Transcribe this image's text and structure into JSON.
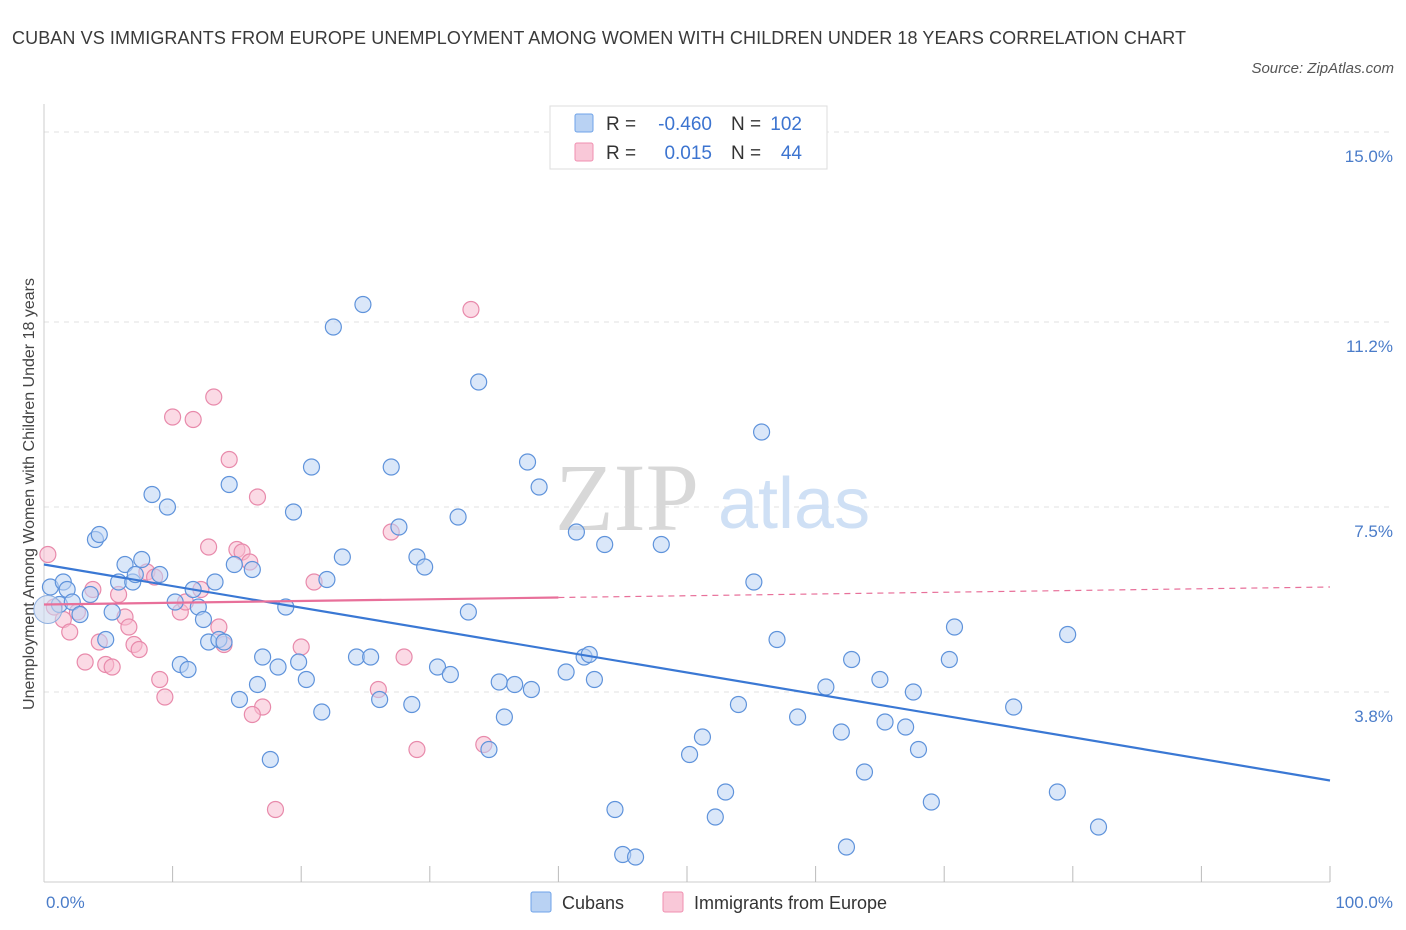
{
  "title": "CUBAN VS IMMIGRANTS FROM EUROPE UNEMPLOYMENT AMONG WOMEN WITH CHILDREN UNDER 18 YEARS CORRELATION CHART",
  "source": "Source: ZipAtlas.com",
  "watermark": {
    "zip": "ZIP",
    "atlas": "atlas"
  },
  "colors": {
    "cubans": "#6fa3e8",
    "europe": "#f08fb0",
    "cubans_line": "#3a78d4",
    "europe_line": "#e8709a",
    "tick_label": "#4a7cc9"
  },
  "legend": {
    "rows": [
      {
        "r_label": "R =",
        "r_value": "-0.460",
        "n_label": "N =",
        "n_value": "102",
        "series": "cubans"
      },
      {
        "r_label": "R =",
        "r_value": "0.015",
        "n_label": "N =",
        "n_value": "44",
        "series": "europe"
      }
    ]
  },
  "chart_data": {
    "type": "scatter",
    "title": "CUBAN VS IMMIGRANTS FROM EUROPE UNEMPLOYMENT AMONG WOMEN WITH CHILDREN UNDER 18 YEARS CORRELATION CHART",
    "ylabel": "Unemployment Among Women with Children Under 18 years",
    "xlabel": "",
    "x_range": [
      0,
      100
    ],
    "y_range": [
      0,
      15
    ],
    "x_tick_labels": [
      "0.0%",
      "100.0%"
    ],
    "y_ticks": [
      {
        "value": 3.8,
        "label": "3.8%"
      },
      {
        "value": 7.5,
        "label": "7.5%"
      },
      {
        "value": 11.2,
        "label": "11.2%"
      },
      {
        "value": 15.0,
        "label": "15.0%"
      }
    ],
    "grid": "horizontal dashed",
    "legend_position": "top-center",
    "series": [
      {
        "name": "Cubans",
        "color": "#6fa3e8",
        "trend": {
          "x": [
            0,
            100
          ],
          "y": [
            6.35,
            2.03
          ],
          "style": "solid"
        },
        "points": [
          [
            0.5,
            5.9
          ],
          [
            1.2,
            5.55
          ],
          [
            1.5,
            6.0
          ],
          [
            1.8,
            5.85
          ],
          [
            2.2,
            5.6
          ],
          [
            2.8,
            5.35
          ],
          [
            3.6,
            5.75
          ],
          [
            4.0,
            6.85
          ],
          [
            4.3,
            6.95
          ],
          [
            4.8,
            4.85
          ],
          [
            5.3,
            5.4
          ],
          [
            5.8,
            6.0
          ],
          [
            6.3,
            6.35
          ],
          [
            6.9,
            6.0
          ],
          [
            7.1,
            6.15
          ],
          [
            7.6,
            6.45
          ],
          [
            8.4,
            7.75
          ],
          [
            9.0,
            6.15
          ],
          [
            9.6,
            7.5
          ],
          [
            10.2,
            5.6
          ],
          [
            10.6,
            4.35
          ],
          [
            11.2,
            4.25
          ],
          [
            11.6,
            5.85
          ],
          [
            12.0,
            5.5
          ],
          [
            12.4,
            5.25
          ],
          [
            12.8,
            4.8
          ],
          [
            13.3,
            6.0
          ],
          [
            13.6,
            4.85
          ],
          [
            14.0,
            4.8
          ],
          [
            14.4,
            7.95
          ],
          [
            14.8,
            6.35
          ],
          [
            15.2,
            3.65
          ],
          [
            16.2,
            6.25
          ],
          [
            16.6,
            3.95
          ],
          [
            17.0,
            4.5
          ],
          [
            17.6,
            2.45
          ],
          [
            18.2,
            4.3
          ],
          [
            18.8,
            5.5
          ],
          [
            19.4,
            7.4
          ],
          [
            19.8,
            4.4
          ],
          [
            20.4,
            4.05
          ],
          [
            20.8,
            8.3
          ],
          [
            21.6,
            3.4
          ],
          [
            22.0,
            6.05
          ],
          [
            22.5,
            11.1
          ],
          [
            23.2,
            6.5
          ],
          [
            24.3,
            4.5
          ],
          [
            24.8,
            11.55
          ],
          [
            25.4,
            4.5
          ],
          [
            26.1,
            3.65
          ],
          [
            27.0,
            8.3
          ],
          [
            27.6,
            7.1
          ],
          [
            28.6,
            3.55
          ],
          [
            29.0,
            6.5
          ],
          [
            29.6,
            6.3
          ],
          [
            30.6,
            4.3
          ],
          [
            31.6,
            4.15
          ],
          [
            32.2,
            7.3
          ],
          [
            33.0,
            5.4
          ],
          [
            33.8,
            10.0
          ],
          [
            34.6,
            2.65
          ],
          [
            35.4,
            4.0
          ],
          [
            35.8,
            3.3
          ],
          [
            36.6,
            3.95
          ],
          [
            37.6,
            8.4
          ],
          [
            37.9,
            3.85
          ],
          [
            38.5,
            7.9
          ],
          [
            40.6,
            4.2
          ],
          [
            41.4,
            7.0
          ],
          [
            42.0,
            4.5
          ],
          [
            42.4,
            4.55
          ],
          [
            42.8,
            4.05
          ],
          [
            43.6,
            6.75
          ],
          [
            44.4,
            1.45
          ],
          [
            45.0,
            0.55
          ],
          [
            46.0,
            0.5
          ],
          [
            48.0,
            6.75
          ],
          [
            50.2,
            2.55
          ],
          [
            51.2,
            2.9
          ],
          [
            52.2,
            1.3
          ],
          [
            53.0,
            1.8
          ],
          [
            54.0,
            3.55
          ],
          [
            55.2,
            6.0
          ],
          [
            55.8,
            9.0
          ],
          [
            57.0,
            4.85
          ],
          [
            58.6,
            3.3
          ],
          [
            60.8,
            3.9
          ],
          [
            62.0,
            3.0
          ],
          [
            62.4,
            0.7
          ],
          [
            62.8,
            4.45
          ],
          [
            63.8,
            2.2
          ],
          [
            65.0,
            4.05
          ],
          [
            65.4,
            3.2
          ],
          [
            67.0,
            3.1
          ],
          [
            67.6,
            3.8
          ],
          [
            68.0,
            2.65
          ],
          [
            69.0,
            1.6
          ],
          [
            70.4,
            4.45
          ],
          [
            70.8,
            5.1
          ],
          [
            75.4,
            3.5
          ],
          [
            78.8,
            1.8
          ],
          [
            79.6,
            4.95
          ],
          [
            82.0,
            1.1
          ]
        ]
      },
      {
        "name": "Immigrants from Europe",
        "color": "#f08fb0",
        "trend": {
          "x": [
            0,
            100
          ],
          "y": [
            5.55,
            5.9
          ],
          "style": "solid to 40, dashed after"
        },
        "points": [
          [
            0.3,
            6.55
          ],
          [
            0.8,
            5.5
          ],
          [
            1.5,
            5.25
          ],
          [
            2.0,
            5.0
          ],
          [
            2.6,
            5.4
          ],
          [
            3.2,
            4.4
          ],
          [
            3.8,
            5.85
          ],
          [
            4.3,
            4.8
          ],
          [
            4.8,
            4.35
          ],
          [
            5.3,
            4.3
          ],
          [
            5.8,
            5.75
          ],
          [
            6.3,
            5.3
          ],
          [
            6.6,
            5.1
          ],
          [
            7.0,
            4.75
          ],
          [
            7.4,
            4.65
          ],
          [
            8.0,
            6.2
          ],
          [
            8.6,
            6.1
          ],
          [
            9.0,
            4.05
          ],
          [
            9.4,
            3.7
          ],
          [
            10.0,
            9.3
          ],
          [
            10.6,
            5.4
          ],
          [
            11.0,
            5.6
          ],
          [
            11.6,
            9.25
          ],
          [
            12.2,
            5.85
          ],
          [
            12.8,
            6.7
          ],
          [
            13.2,
            9.7
          ],
          [
            13.6,
            5.1
          ],
          [
            14.0,
            4.75
          ],
          [
            14.4,
            8.45
          ],
          [
            15.0,
            6.65
          ],
          [
            15.4,
            6.6
          ],
          [
            16.0,
            6.4
          ],
          [
            16.6,
            7.7
          ],
          [
            17.0,
            3.5
          ],
          [
            18.0,
            1.45
          ],
          [
            20.0,
            4.7
          ],
          [
            21.0,
            6.0
          ],
          [
            26.0,
            3.85
          ],
          [
            27.0,
            7.0
          ],
          [
            28.0,
            4.5
          ],
          [
            29.0,
            2.65
          ],
          [
            33.2,
            11.45
          ],
          [
            34.2,
            2.75
          ],
          [
            16.2,
            3.35
          ]
        ]
      }
    ]
  },
  "bottom_legend": [
    {
      "label": "Cubans",
      "series": "cubans"
    },
    {
      "label": "Immigrants from Europe",
      "series": "europe"
    }
  ]
}
